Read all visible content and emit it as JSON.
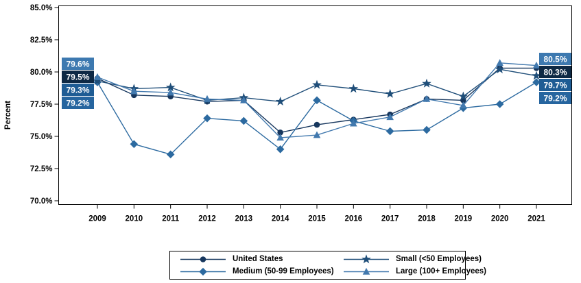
{
  "chart_data": {
    "type": "line",
    "title": "",
    "ylabel": "Percent",
    "xlabel": "",
    "grid": false,
    "legend_position": "bottom",
    "y_range": [
      70.0,
      85.0
    ],
    "y_tick_step": 2.5,
    "y_ticks": [
      "85.0%",
      "82.5%",
      "80.0%",
      "77.5%",
      "75.0%",
      "72.5%",
      "70.0%"
    ],
    "x_categories": [
      "2009",
      "2010",
      "2011",
      "2012",
      "2013",
      "2014",
      "2015",
      "2016",
      "2017",
      "2018",
      "2019",
      "2020",
      "2021"
    ],
    "series": [
      {
        "name": "United States",
        "marker": "circle",
        "color": "#17375e",
        "values": [
          79.5,
          78.2,
          78.1,
          77.7,
          77.8,
          75.3,
          75.9,
          76.3,
          76.7,
          77.9,
          77.8,
          80.3,
          80.3
        ]
      },
      {
        "name": "Medium (50-99 Employees)",
        "marker": "diamond",
        "color": "#2c6aa0",
        "values": [
          79.2,
          74.4,
          73.6,
          76.4,
          76.2,
          74.0,
          77.8,
          76.2,
          75.4,
          75.5,
          77.2,
          77.5,
          79.2
        ]
      },
      {
        "name": "Small (<50 Employees)",
        "marker": "star",
        "color": "#1f4e79",
        "values": [
          79.3,
          78.7,
          78.8,
          77.8,
          78.0,
          77.7,
          79.0,
          78.7,
          78.3,
          79.1,
          78.1,
          80.2,
          79.7
        ]
      },
      {
        "name": "Large (100+ Employees)",
        "marker": "triangle",
        "color": "#4279ae",
        "values": [
          79.6,
          78.5,
          78.4,
          77.9,
          77.8,
          74.9,
          75.1,
          76.0,
          76.5,
          77.9,
          77.4,
          80.7,
          80.5
        ]
      }
    ],
    "value_labels": {
      "left": [
        {
          "text": "79.6%",
          "bg": "#3d79b0",
          "series": "Large (100+ Employees)"
        },
        {
          "text": "79.5%",
          "bg": "#0e2944",
          "series": "United States"
        },
        {
          "text": "79.3%",
          "bg": "#1e5c94",
          "series": "Small (<50 Employees)"
        },
        {
          "text": "79.2%",
          "bg": "#26659f",
          "series": "Medium (50-99 Employees)"
        }
      ],
      "right": [
        {
          "text": "80.5%",
          "bg": "#3d79b0",
          "series": "Large (100+ Employees)"
        },
        {
          "text": "80.3%",
          "bg": "#0e2944",
          "series": "United States"
        },
        {
          "text": "79.7%",
          "bg": "#1e5c94",
          "series": "Small (<50 Employees)"
        },
        {
          "text": "79.2%",
          "bg": "#26659f",
          "series": "Medium (50-99 Employees)"
        }
      ]
    },
    "legend": [
      {
        "label": "United States",
        "marker": "circle",
        "color": "#17375e"
      },
      {
        "label": "Small (<50 Employees)",
        "marker": "star",
        "color": "#1f4e79"
      },
      {
        "label": "Medium (50-99 Employees)",
        "marker": "diamond",
        "color": "#2c6aa0"
      },
      {
        "label": "Large (100+ Employees)",
        "marker": "triangle",
        "color": "#4279ae"
      }
    ]
  }
}
